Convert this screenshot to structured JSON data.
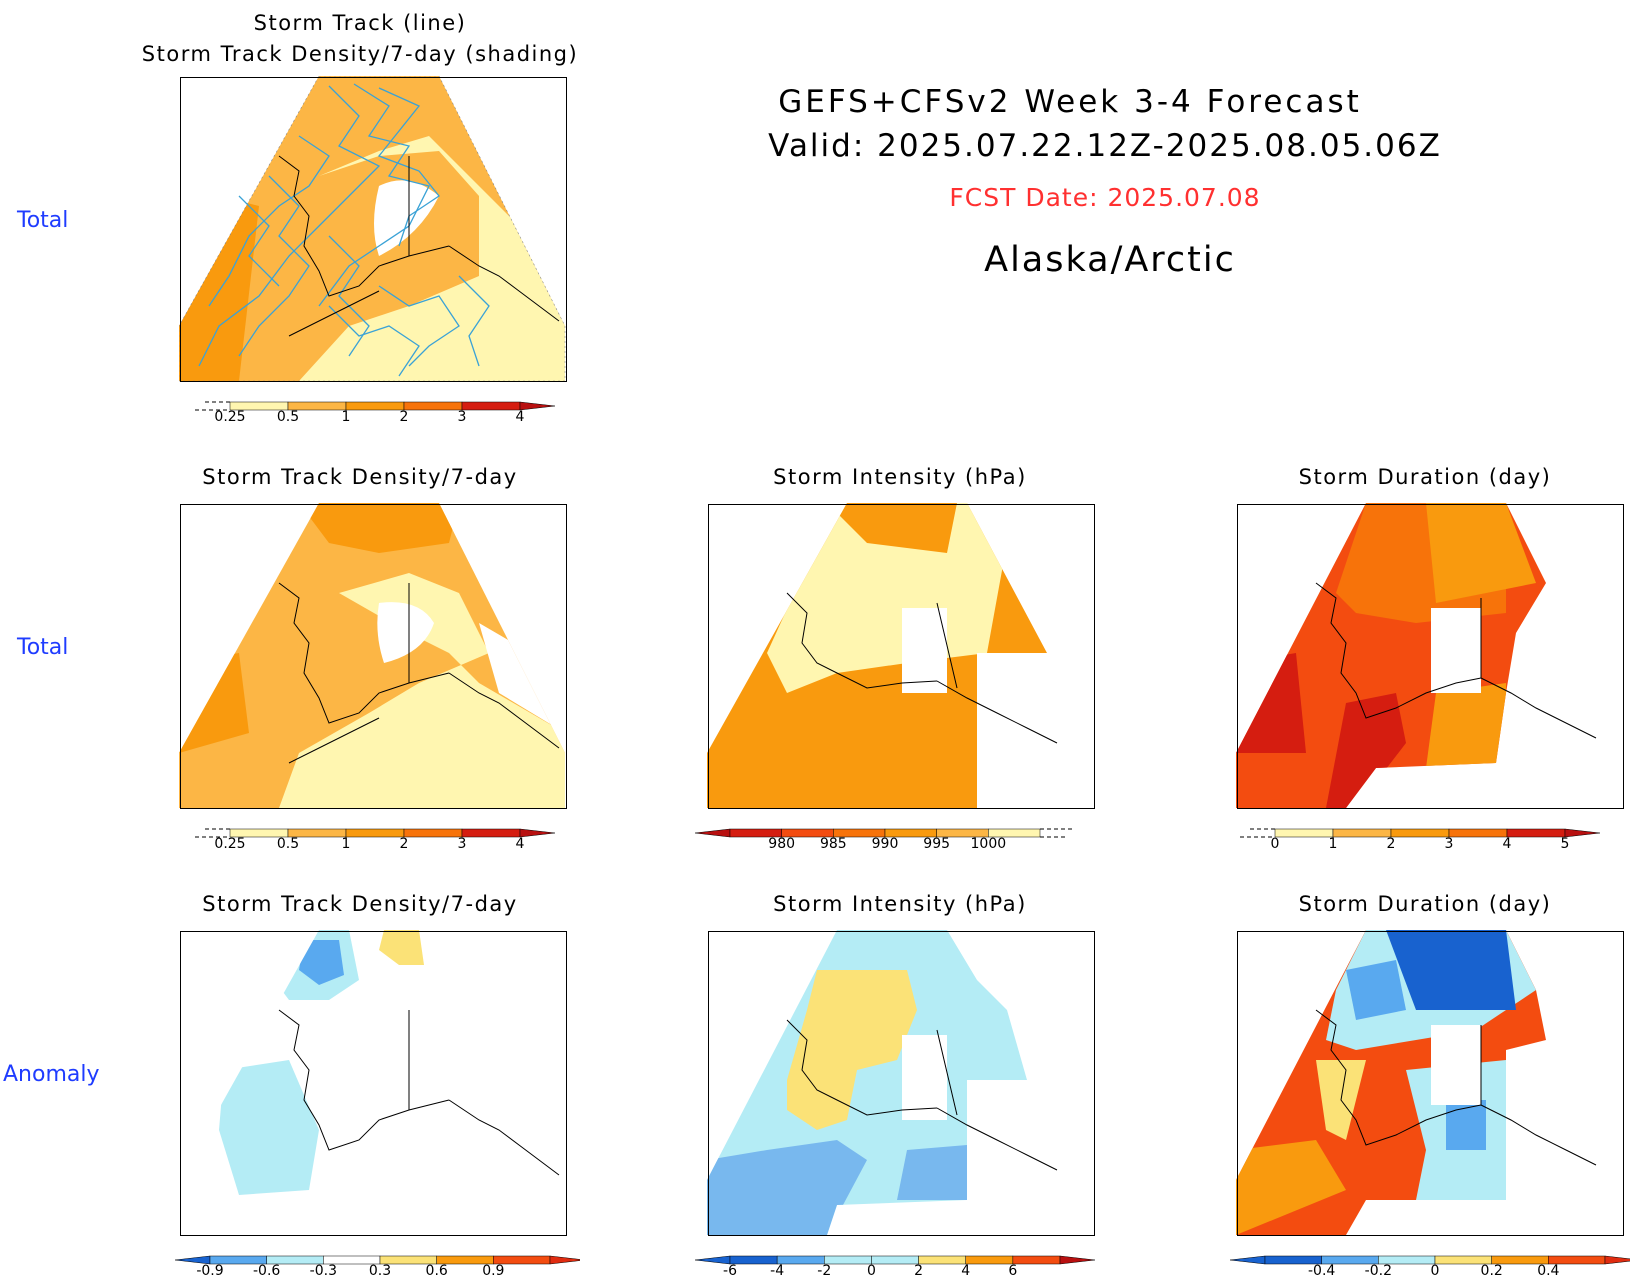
{
  "header": {
    "line1": "GEFS+CFSv2 Week 3-4 Forecast",
    "line2": "Valid: 2025.07.22.12Z-2025.08.05.06Z",
    "fcst": "FCST Date: 2025.07.08",
    "region": "Alaska/Arctic",
    "fcst_color": "#ff3030"
  },
  "row_labels": [
    "Total",
    "Total",
    "Anomaly"
  ],
  "top_panel": {
    "title1": "Storm Track (line)",
    "title2": "Storm Track Density/7-day (shading)"
  },
  "panel_titles": {
    "density": "Storm Track Density/7-day",
    "intensity": "Storm Intensity (hPa)",
    "duration": "Storm Duration (day)"
  },
  "colorbars": {
    "density_total": [
      "0.25",
      "0.5",
      "1",
      "2",
      "3",
      "4"
    ],
    "intensity_total": [
      "980",
      "985",
      "990",
      "995",
      "1000"
    ],
    "duration_total": [
      "0",
      "1",
      "2",
      "3",
      "4",
      "5"
    ],
    "density_anom": [
      "-0.9",
      "-0.6",
      "-0.3",
      "0.3",
      "0.6",
      "0.9"
    ],
    "intensity_anom": [
      "-6",
      "-4",
      "-2",
      "0",
      "2",
      "4",
      "6"
    ],
    "duration_anom": [
      "-0.4",
      "-0.2",
      "0",
      "0.2",
      "0.4"
    ]
  },
  "palette": {
    "pale_yellow": "#fff6b0",
    "light_orange": "#fcb645",
    "orange": "#f99a0e",
    "dark_orange": "#f7730a",
    "red_orange": "#f34c10",
    "red": "#d51d10",
    "light_blue": "#b4ecf5",
    "mid_blue": "#59a9ef",
    "blue": "#1862cf",
    "yellow": "#fbe277",
    "track_line": "#3aa2d6",
    "row_label": "#1f3cff"
  }
}
